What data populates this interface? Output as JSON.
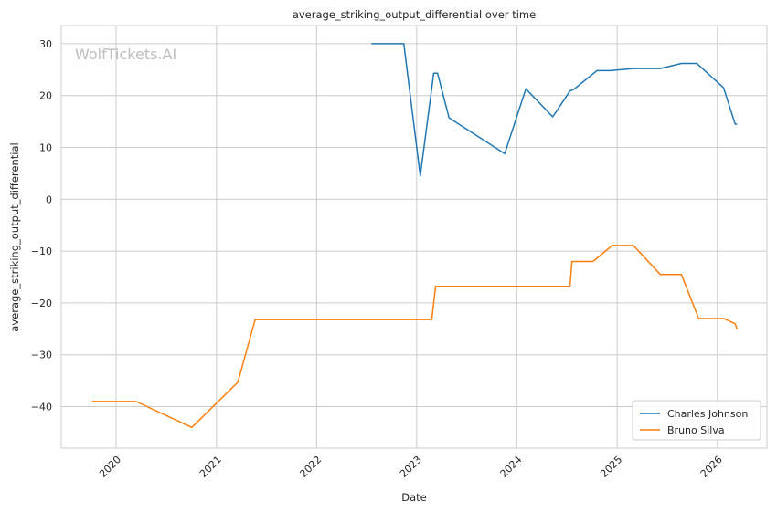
{
  "chart_data": {
    "type": "line",
    "title": "average_striking_output_differential over time",
    "xlabel": "Date",
    "ylabel": "average_striking_output_differential",
    "watermark": "WolfTickets.AI",
    "xlim": [
      "2019-06-15",
      "2026-07-01"
    ],
    "ylim": [
      -48,
      33.5
    ],
    "x_ticks": [
      "2020-01-01",
      "2021-01-01",
      "2022-01-01",
      "2023-01-01",
      "2024-01-01",
      "2025-01-01",
      "2026-01-01"
    ],
    "x_tick_labels": [
      "2020",
      "2021",
      "2022",
      "2023",
      "2024",
      "2025",
      "2026"
    ],
    "y_ticks": [
      30,
      20,
      10,
      0,
      -10,
      -20,
      -30,
      -40
    ],
    "y_tick_labels": [
      "30",
      "20",
      "10",
      "0",
      "−10",
      "−20",
      "−30",
      "−40"
    ],
    "grid": true,
    "legend_position": "bottom-right",
    "series": [
      {
        "name": "Charles Johnson",
        "color": "#1f77b4",
        "points": [
          [
            "2022-07-20",
            30
          ],
          [
            "2022-11-15",
            30
          ],
          [
            "2023-01-14",
            4.5
          ],
          [
            "2023-03-04",
            24.3
          ],
          [
            "2023-03-18",
            24.3
          ],
          [
            "2023-04-29",
            15.7
          ],
          [
            "2023-11-18",
            8.8
          ],
          [
            "2024-02-03",
            21.3
          ],
          [
            "2024-05-11",
            15.9
          ],
          [
            "2024-07-13",
            20.9
          ],
          [
            "2024-07-27",
            21.2
          ],
          [
            "2024-10-19",
            24.8
          ],
          [
            "2024-12-07",
            24.8
          ],
          [
            "2025-03-01",
            25.2
          ],
          [
            "2025-06-07",
            25.2
          ],
          [
            "2025-08-23",
            26.2
          ],
          [
            "2025-10-18",
            26.2
          ],
          [
            "2026-01-24",
            21.5
          ],
          [
            "2026-03-07",
            14.5
          ],
          [
            "2026-03-14",
            14.5
          ]
        ]
      },
      {
        "name": "Bruno Silva",
        "color": "#ff7f0e",
        "points": [
          [
            "2019-10-05",
            -39
          ],
          [
            "2020-03-14",
            -39
          ],
          [
            "2020-10-03",
            -44
          ],
          [
            "2021-03-20",
            -35.3
          ],
          [
            "2021-05-22",
            -23.2
          ],
          [
            "2023-02-25",
            -23.2
          ],
          [
            "2023-03-11",
            -16.8
          ],
          [
            "2024-07-13",
            -16.8
          ],
          [
            "2024-07-20",
            -12
          ],
          [
            "2024-10-05",
            -12
          ],
          [
            "2024-12-14",
            -8.9
          ],
          [
            "2025-03-01",
            -8.9
          ],
          [
            "2025-06-07",
            -14.5
          ],
          [
            "2025-08-23",
            -14.5
          ],
          [
            "2025-10-25",
            -23
          ],
          [
            "2026-01-24",
            -23
          ],
          [
            "2026-03-07",
            -24
          ],
          [
            "2026-03-14",
            -25
          ]
        ]
      }
    ]
  }
}
